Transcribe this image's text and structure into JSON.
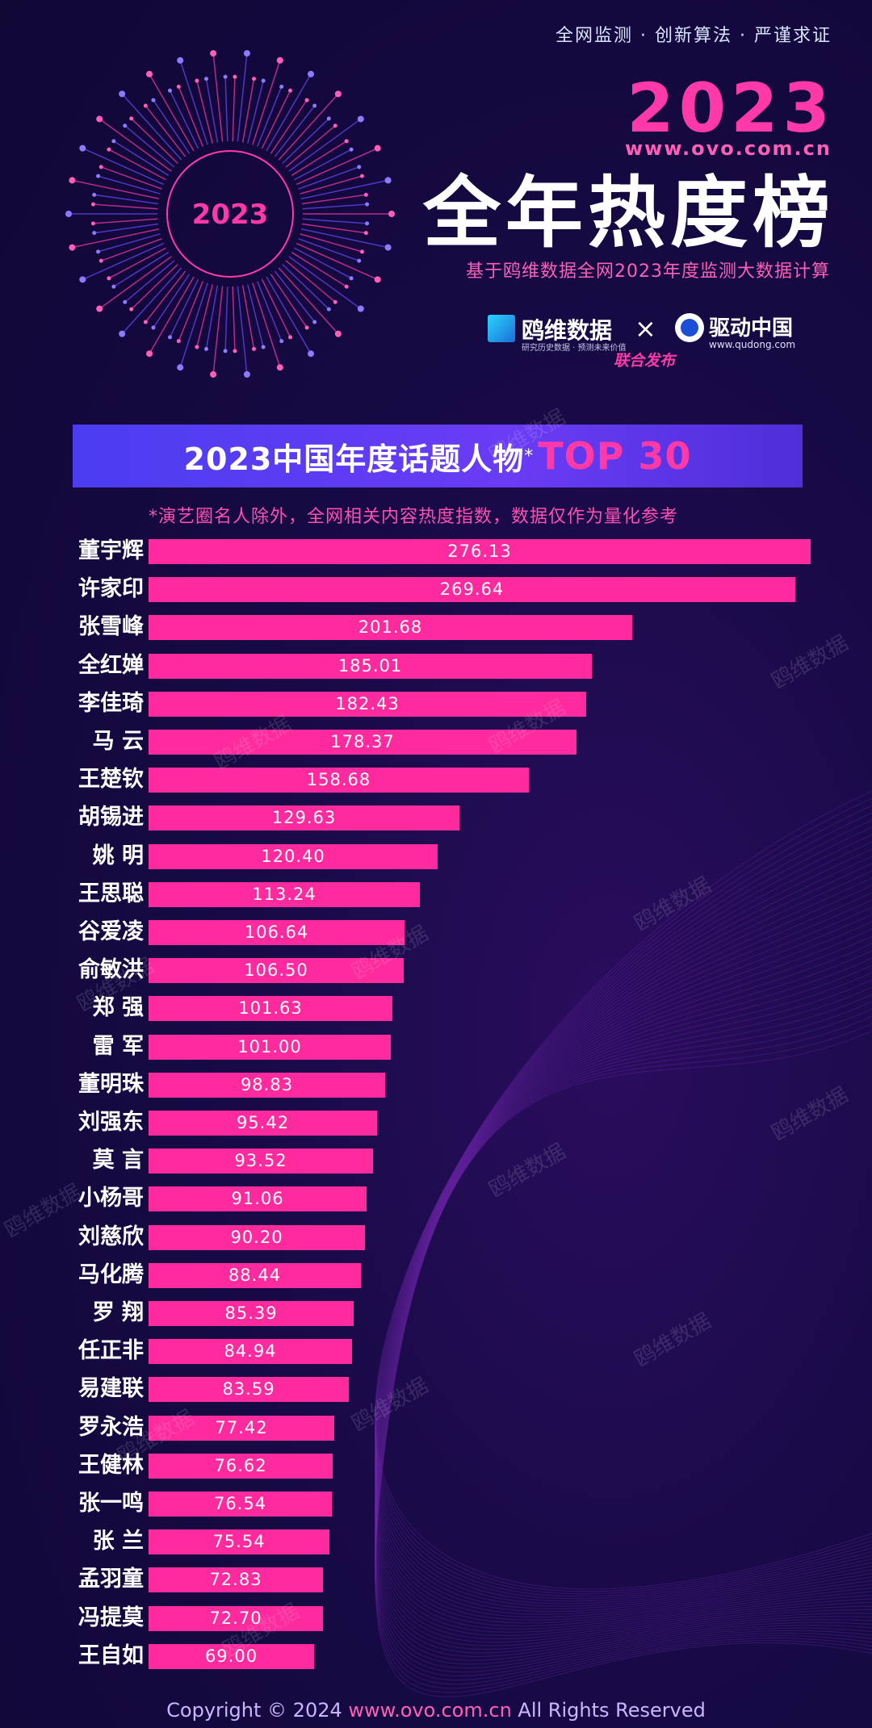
{
  "header": {
    "tagline": "全网监测 · 创新算法 · 严谨求证",
    "year": "2023",
    "url": "www.ovo.com.cn",
    "title": "全年热度榜",
    "subtitle": "基于鸥维数据全网2023年度监测大数据计算",
    "badge_year": "2023"
  },
  "logos": {
    "left_name": "鸥维数据",
    "left_slogan": "研究历史数据 · 预测未来价值",
    "times": "×",
    "right_name": "驱动中国",
    "right_url": "www.qudong.com",
    "joint": "联合发布"
  },
  "banner": {
    "text_a": "2023中国年度话题人物",
    "star": "*",
    "text_b": "TOP 30"
  },
  "note": "*演艺圈名人除外，全网相关内容热度指数，数据仅作为量化参考",
  "watermark": "鸥维数据",
  "footer": {
    "prefix": "Copyright © 2024",
    "url": "www.ovo.com.cn",
    "suffix": "All Rights Reserved"
  },
  "colors": {
    "bar": "#ff2a9e",
    "accent": "#ff3aa8",
    "banner": "#5a3cf2",
    "background": "#170a45"
  },
  "chart_data": {
    "type": "bar",
    "orientation": "horizontal",
    "title": "2023中国年度话题人物*TOP 30",
    "categories": [
      "董宇辉",
      "许家印",
      "张雪峰",
      "全红婵",
      "李佳琦",
      "马 云",
      "王楚钦",
      "胡锡进",
      "姚 明",
      "王思聪",
      "谷爱凌",
      "俞敏洪",
      "郑 强",
      "雷 军",
      "董明珠",
      "刘强东",
      "莫 言",
      "小杨哥",
      "刘慈欣",
      "马化腾",
      "罗 翔",
      "任正非",
      "易建联",
      "罗永浩",
      "王健林",
      "张一鸣",
      "张 兰",
      "孟羽童",
      "冯提莫",
      "王自如"
    ],
    "values": [
      276.13,
      269.64,
      201.68,
      185.01,
      182.43,
      178.37,
      158.68,
      129.63,
      120.4,
      113.24,
      106.64,
      106.5,
      101.63,
      101.0,
      98.83,
      95.42,
      93.52,
      91.06,
      90.2,
      88.44,
      85.39,
      84.94,
      83.59,
      77.42,
      76.62,
      76.54,
      75.54,
      72.83,
      72.7,
      69.0
    ],
    "labels": [
      "276.13",
      "269.64",
      "201.68",
      "185.01",
      "182.43",
      "178.37",
      "158.68",
      "129.63",
      "120.40",
      "113.24",
      "106.64",
      "106.50",
      "101.63",
      "101.00",
      "98.83",
      "95.42",
      "93.52",
      "91.06",
      "90.20",
      "88.44",
      "85.39",
      "84.94",
      "83.59",
      "77.42",
      "76.62",
      "76.54",
      "75.54",
      "72.83",
      "72.70",
      "69.00"
    ]
  }
}
